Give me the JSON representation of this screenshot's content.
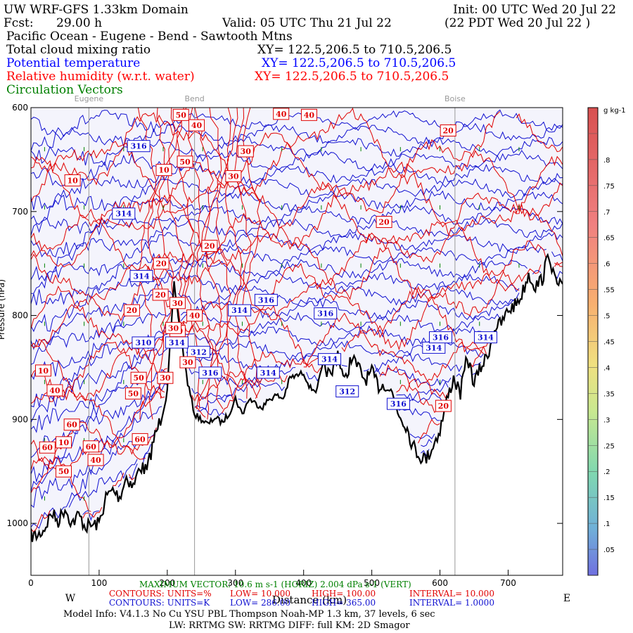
{
  "header": {
    "model": "UW WRF-GFS 1.33km Domain",
    "init": "Init: 00 UTC Wed 20 Jul 22",
    "fcst_label": "Fcst:",
    "fcst_value": "29.00 h",
    "valid": "Valid: 05 UTC Thu 21 Jul 22",
    "valid_local": "(22 PDT Wed 20 Jul 22  )",
    "region": "Pacific Ocean - Eugene - Bend - Sawtooth Mtns",
    "fields": [
      {
        "name": "Total cloud mixing ratio",
        "xy": "XY= 122.5,206.5 to 710.5,206.5",
        "color": "#000000"
      },
      {
        "name": "Potential temperature",
        "xy": "XY= 122.5,206.5 to 710.5,206.5",
        "color": "#0000ff"
      },
      {
        "name": "Relative humidity (w.r.t. water)",
        "xy": "XY= 122.5,206.5 to 710.5,206.5",
        "color": "#ff0000"
      },
      {
        "name": "Circulation Vectors",
        "xy": "",
        "color": "#008000"
      }
    ]
  },
  "chart_data": {
    "type": "line",
    "title": "Vertical cross-section: Pacific Ocean - Eugene - Bend - Sawtooth Mtns",
    "xlabel": "Distance (km)",
    "ylabel": "Pressure (hPa)",
    "xlim": [
      0,
      780
    ],
    "ylim": [
      1050,
      600
    ],
    "x_ticks": [
      0,
      100,
      200,
      300,
      400,
      500,
      600,
      700
    ],
    "x_tick_labels": [
      "0",
      "100",
      "200",
      "300",
      "400",
      "500",
      "600",
      "700"
    ],
    "y_ticks": [
      600,
      700,
      800,
      900,
      1000
    ],
    "y_tick_labels": [
      "600",
      "700",
      "800",
      "900",
      "1000"
    ],
    "left_end": "W",
    "right_end": "E",
    "cities": [
      {
        "name": "Eugene",
        "km": 85
      },
      {
        "name": "Bend",
        "km": 240
      },
      {
        "name": "Boise",
        "km": 622
      }
    ],
    "terrain_hpa": {
      "km": [
        0,
        10,
        20,
        30,
        40,
        50,
        60,
        70,
        80,
        90,
        100,
        110,
        120,
        130,
        140,
        150,
        160,
        170,
        180,
        190,
        200,
        210,
        220,
        230,
        240,
        250,
        260,
        270,
        280,
        290,
        300,
        310,
        320,
        330,
        340,
        350,
        360,
        370,
        380,
        390,
        400,
        410,
        420,
        430,
        440,
        450,
        460,
        470,
        480,
        490,
        500,
        510,
        520,
        530,
        540,
        550,
        560,
        570,
        580,
        590,
        600,
        610,
        620,
        630,
        640,
        650,
        660,
        670,
        680,
        690,
        700,
        710,
        720,
        730,
        740,
        750,
        760,
        770,
        780
      ],
      "hpa": [
        1012,
        1012,
        1005,
        990,
        998,
        985,
        1000,
        992,
        1003,
        1002,
        1000,
        975,
        968,
        975,
        955,
        965,
        945,
        950,
        920,
        900,
        870,
        770,
        820,
        865,
        895,
        900,
        905,
        898,
        903,
        895,
        880,
        895,
        880,
        885,
        888,
        880,
        877,
        880,
        860,
        858,
        855,
        870,
        872,
        848,
        860,
        835,
        865,
        840,
        850,
        862,
        855,
        868,
        866,
        875,
        895,
        905,
        925,
        935,
        938,
        925,
        910,
        882,
        860,
        875,
        840,
        865,
        850,
        838,
        812,
        808,
        795,
        790,
        780,
        760,
        772,
        765,
        740,
        770,
        770
      ]
    },
    "theta_label_K": [
      "316",
      "314",
      "314",
      "316",
      "314",
      "312",
      "314",
      "314",
      "310",
      "316",
      "316",
      "314",
      "312",
      "314",
      "316",
      "314",
      "316"
    ],
    "rh_label_pct": [
      "50",
      "40",
      "40",
      "40",
      "30",
      "50",
      "10",
      "30",
      "20",
      "10",
      "20",
      "20",
      "30",
      "40",
      "20",
      "20",
      "10",
      "30",
      "40",
      "50",
      "40",
      "60",
      "10",
      "40",
      "60",
      "50",
      "60",
      "60",
      "50",
      "30",
      "20",
      "30",
      "20"
    ],
    "max_vector": "MAXIMUM VECTOR: 10.6 m s-1 (HORIZ)   2.004 dPa s-1 (VERT)",
    "rh_contours": {
      "units": "CONTOURS:  UNITS=%",
      "low": "LOW=  10.000",
      "high": "HIGH=  100.00",
      "interval": "INTERVAL=  10.000"
    },
    "theta_contours": {
      "units": "CONTOURS:  UNITS=K",
      "low": "LOW=  286.00",
      "high": "HIGH=  365.00",
      "interval": "INTERVAL=  1.0000"
    },
    "colorbar": {
      "units": "g kg-1",
      "ticks": [
        0.05,
        0.1,
        0.15,
        0.2,
        0.25,
        0.3,
        0.35,
        0.4,
        0.45,
        0.5,
        0.55,
        0.6,
        0.65,
        0.7,
        0.75,
        0.8
      ],
      "tick_labels": [
        ".05",
        ".1",
        ".15",
        ".2",
        ".25",
        ".3",
        ".35",
        ".4",
        ".45",
        ".5",
        ".55",
        ".6",
        ".65",
        ".7",
        ".75",
        ".8"
      ],
      "range": [
        0,
        0.9
      ]
    }
  },
  "footer": {
    "model_info": "Model Info: V4.1.3    No Cu    YSU PBL  Thompson    Noah-MP    1.3 km,   37 levels,     6 sec",
    "physics": "LW: RRTMG  SW: RRTMG    DIFF: full   KM: 2D Smagor"
  }
}
